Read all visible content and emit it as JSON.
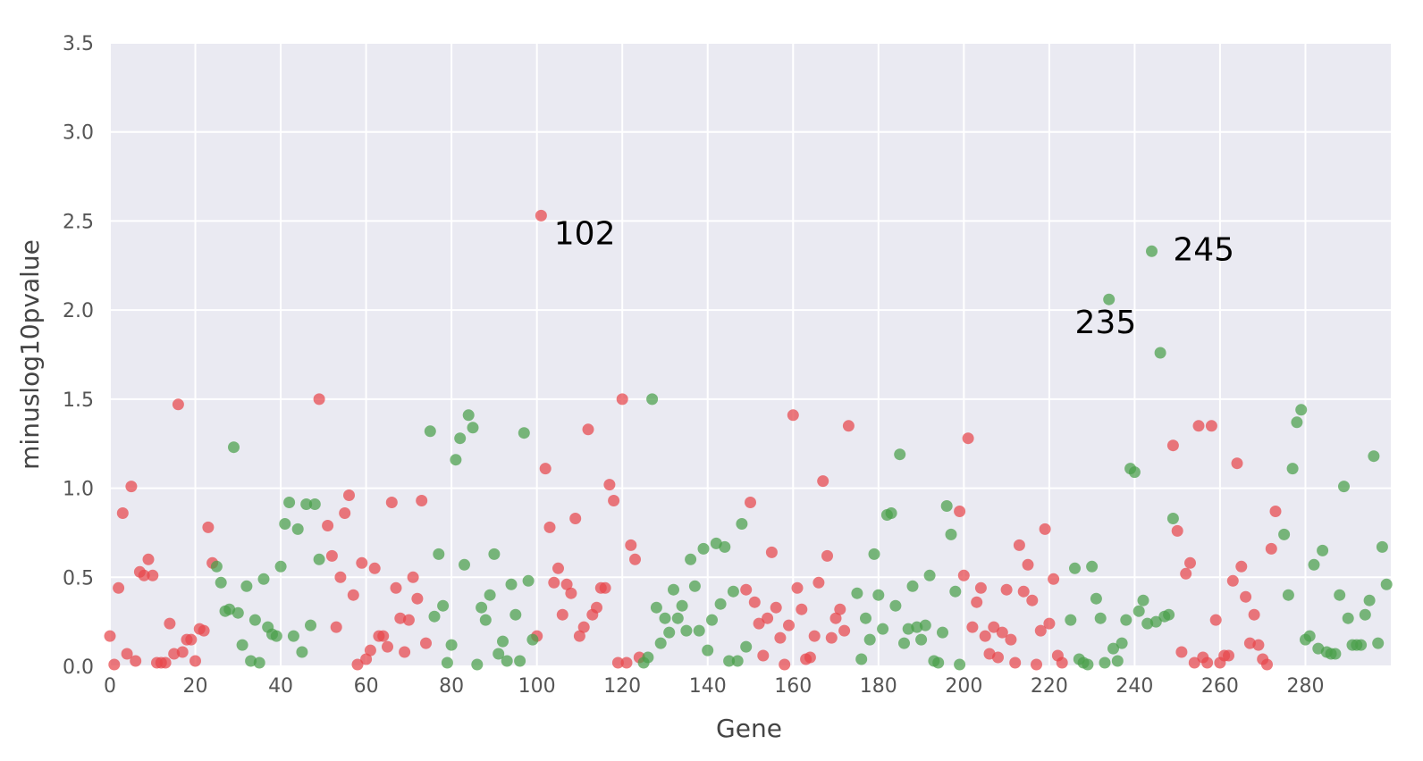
{
  "chart_data": {
    "type": "scatter",
    "title": "",
    "xlabel": "Gene",
    "ylabel": "minuslog10pvalue",
    "xlim": [
      0,
      300
    ],
    "ylim": [
      0,
      3.5
    ],
    "x_ticks": [
      0,
      20,
      40,
      60,
      80,
      100,
      120,
      140,
      160,
      180,
      200,
      220,
      240,
      260,
      280
    ],
    "y_ticks": [
      "0.0",
      "0.5",
      "1.0",
      "1.5",
      "2.0",
      "2.5",
      "3.0",
      "3.5"
    ],
    "grid": true,
    "background_color": "#eaeaf2",
    "colors": {
      "red": "#e8474b",
      "green": "#4aa04a"
    },
    "annotations": [
      {
        "text": "102",
        "x": 104,
        "y": 2.37
      },
      {
        "text": "235",
        "x": 226,
        "y": 1.87
      },
      {
        "text": "245",
        "x": 249,
        "y": 2.28
      }
    ],
    "series": [
      {
        "color": "red",
        "points": [
          [
            0,
            0.17
          ],
          [
            1,
            0.01
          ],
          [
            2,
            0.44
          ],
          [
            3,
            0.86
          ],
          [
            4,
            0.07
          ],
          [
            5,
            1.01
          ],
          [
            6,
            0.03
          ],
          [
            7,
            0.53
          ],
          [
            8,
            0.51
          ],
          [
            9,
            0.6
          ],
          [
            10,
            0.51
          ],
          [
            11,
            0.02
          ],
          [
            12,
            0.02
          ],
          [
            13,
            0.02
          ],
          [
            14,
            0.24
          ],
          [
            15,
            0.07
          ],
          [
            16,
            1.47
          ],
          [
            17,
            0.08
          ],
          [
            18,
            0.15
          ],
          [
            19,
            0.15
          ],
          [
            20,
            0.03
          ],
          [
            21,
            0.21
          ],
          [
            22,
            0.2
          ],
          [
            23,
            0.78
          ],
          [
            24,
            0.58
          ],
          [
            49,
            1.5
          ],
          [
            51,
            0.79
          ],
          [
            52,
            0.62
          ],
          [
            53,
            0.22
          ],
          [
            54,
            0.5
          ],
          [
            55,
            0.86
          ],
          [
            56,
            0.96
          ],
          [
            57,
            0.4
          ],
          [
            58,
            0.01
          ],
          [
            59,
            0.58
          ],
          [
            60,
            0.04
          ],
          [
            61,
            0.09
          ],
          [
            62,
            0.55
          ],
          [
            63,
            0.17
          ],
          [
            64,
            0.17
          ],
          [
            65,
            0.11
          ],
          [
            66,
            0.92
          ],
          [
            67,
            0.44
          ],
          [
            68,
            0.27
          ],
          [
            69,
            0.08
          ],
          [
            70,
            0.26
          ],
          [
            71,
            0.5
          ],
          [
            72,
            0.38
          ],
          [
            73,
            0.93
          ],
          [
            74,
            0.13
          ],
          [
            100,
            0.17
          ],
          [
            101,
            2.53
          ],
          [
            102,
            1.11
          ],
          [
            103,
            0.78
          ],
          [
            104,
            0.47
          ],
          [
            105,
            0.55
          ],
          [
            106,
            0.29
          ],
          [
            107,
            0.46
          ],
          [
            108,
            0.41
          ],
          [
            109,
            0.83
          ],
          [
            110,
            0.17
          ],
          [
            111,
            0.22
          ],
          [
            112,
            1.33
          ],
          [
            113,
            0.29
          ],
          [
            114,
            0.33
          ],
          [
            115,
            0.44
          ],
          [
            116,
            0.44
          ],
          [
            117,
            1.02
          ],
          [
            118,
            0.93
          ],
          [
            119,
            0.02
          ],
          [
            120,
            1.5
          ],
          [
            121,
            0.02
          ],
          [
            122,
            0.68
          ],
          [
            123,
            0.6
          ],
          [
            124,
            0.05
          ],
          [
            149,
            0.43
          ],
          [
            150,
            0.92
          ],
          [
            151,
            0.36
          ],
          [
            152,
            0.24
          ],
          [
            153,
            0.06
          ],
          [
            154,
            0.27
          ],
          [
            155,
            0.64
          ],
          [
            156,
            0.33
          ],
          [
            157,
            0.16
          ],
          [
            158,
            0.01
          ],
          [
            159,
            0.23
          ],
          [
            160,
            1.41
          ],
          [
            161,
            0.44
          ],
          [
            162,
            0.32
          ],
          [
            163,
            0.04
          ],
          [
            164,
            0.05
          ],
          [
            165,
            0.17
          ],
          [
            166,
            0.47
          ],
          [
            167,
            1.04
          ],
          [
            168,
            0.62
          ],
          [
            169,
            0.16
          ],
          [
            170,
            0.27
          ],
          [
            171,
            0.32
          ],
          [
            172,
            0.2
          ],
          [
            173,
            1.35
          ],
          [
            199,
            0.87
          ],
          [
            200,
            0.51
          ],
          [
            201,
            1.28
          ],
          [
            202,
            0.22
          ],
          [
            203,
            0.36
          ],
          [
            204,
            0.44
          ],
          [
            205,
            0.17
          ],
          [
            206,
            0.07
          ],
          [
            207,
            0.22
          ],
          [
            208,
            0.05
          ],
          [
            209,
            0.19
          ],
          [
            210,
            0.43
          ],
          [
            211,
            0.15
          ],
          [
            212,
            0.02
          ],
          [
            213,
            0.68
          ],
          [
            214,
            0.42
          ],
          [
            215,
            0.57
          ],
          [
            216,
            0.37
          ],
          [
            217,
            0.01
          ],
          [
            218,
            0.2
          ],
          [
            219,
            0.77
          ],
          [
            220,
            0.24
          ],
          [
            221,
            0.49
          ],
          [
            222,
            0.06
          ],
          [
            223,
            0.02
          ],
          [
            249,
            1.24
          ],
          [
            250,
            0.76
          ],
          [
            251,
            0.08
          ],
          [
            252,
            0.52
          ],
          [
            253,
            0.58
          ],
          [
            254,
            0.02
          ],
          [
            255,
            1.35
          ],
          [
            256,
            0.05
          ],
          [
            257,
            0.02
          ],
          [
            258,
            1.35
          ],
          [
            259,
            0.26
          ],
          [
            260,
            0.02
          ],
          [
            261,
            0.06
          ],
          [
            262,
            0.06
          ],
          [
            263,
            0.48
          ],
          [
            264,
            1.14
          ],
          [
            265,
            0.56
          ],
          [
            266,
            0.39
          ],
          [
            267,
            0.13
          ],
          [
            268,
            0.29
          ],
          [
            269,
            0.12
          ],
          [
            270,
            0.04
          ],
          [
            271,
            0.01
          ],
          [
            272,
            0.66
          ],
          [
            273,
            0.87
          ]
        ]
      },
      {
        "color": "green",
        "points": [
          [
            25,
            0.56
          ],
          [
            26,
            0.47
          ],
          [
            27,
            0.31
          ],
          [
            28,
            0.32
          ],
          [
            29,
            1.23
          ],
          [
            30,
            0.3
          ],
          [
            31,
            0.12
          ],
          [
            32,
            0.45
          ],
          [
            33,
            0.03
          ],
          [
            34,
            0.26
          ],
          [
            35,
            0.02
          ],
          [
            36,
            0.49
          ],
          [
            37,
            0.22
          ],
          [
            38,
            0.18
          ],
          [
            39,
            0.17
          ],
          [
            40,
            0.56
          ],
          [
            41,
            0.8
          ],
          [
            42,
            0.92
          ],
          [
            43,
            0.17
          ],
          [
            44,
            0.77
          ],
          [
            45,
            0.08
          ],
          [
            46,
            0.91
          ],
          [
            47,
            0.23
          ],
          [
            48,
            0.91
          ],
          [
            49,
            0.6
          ],
          [
            75,
            1.32
          ],
          [
            76,
            0.28
          ],
          [
            77,
            0.63
          ],
          [
            78,
            0.34
          ],
          [
            79,
            0.02
          ],
          [
            80,
            0.12
          ],
          [
            81,
            1.16
          ],
          [
            82,
            1.28
          ],
          [
            83,
            0.57
          ],
          [
            84,
            1.41
          ],
          [
            85,
            1.34
          ],
          [
            86,
            0.01
          ],
          [
            87,
            0.33
          ],
          [
            88,
            0.26
          ],
          [
            89,
            0.4
          ],
          [
            90,
            0.63
          ],
          [
            91,
            0.07
          ],
          [
            92,
            0.14
          ],
          [
            93,
            0.03
          ],
          [
            94,
            0.46
          ],
          [
            95,
            0.29
          ],
          [
            96,
            0.03
          ],
          [
            97,
            1.31
          ],
          [
            98,
            0.48
          ],
          [
            99,
            0.15
          ],
          [
            125,
            0.02
          ],
          [
            126,
            0.05
          ],
          [
            127,
            1.5
          ],
          [
            128,
            0.33
          ],
          [
            129,
            0.13
          ],
          [
            130,
            0.27
          ],
          [
            131,
            0.19
          ],
          [
            132,
            0.43
          ],
          [
            133,
            0.27
          ],
          [
            134,
            0.34
          ],
          [
            135,
            0.2
          ],
          [
            136,
            0.6
          ],
          [
            137,
            0.45
          ],
          [
            138,
            0.2
          ],
          [
            139,
            0.66
          ],
          [
            140,
            0.09
          ],
          [
            141,
            0.26
          ],
          [
            142,
            0.69
          ],
          [
            143,
            0.35
          ],
          [
            144,
            0.67
          ],
          [
            145,
            0.03
          ],
          [
            146,
            0.42
          ],
          [
            147,
            0.03
          ],
          [
            148,
            0.8
          ],
          [
            149,
            0.11
          ],
          [
            175,
            0.41
          ],
          [
            176,
            0.04
          ],
          [
            177,
            0.27
          ],
          [
            178,
            0.15
          ],
          [
            179,
            0.63
          ],
          [
            180,
            0.4
          ],
          [
            181,
            0.21
          ],
          [
            182,
            0.85
          ],
          [
            183,
            0.86
          ],
          [
            184,
            0.34
          ],
          [
            185,
            1.19
          ],
          [
            186,
            0.13
          ],
          [
            187,
            0.21
          ],
          [
            188,
            0.45
          ],
          [
            189,
            0.22
          ],
          [
            190,
            0.15
          ],
          [
            191,
            0.23
          ],
          [
            192,
            0.51
          ],
          [
            193,
            0.03
          ],
          [
            194,
            0.02
          ],
          [
            195,
            0.19
          ],
          [
            196,
            0.9
          ],
          [
            197,
            0.74
          ],
          [
            198,
            0.42
          ],
          [
            199,
            0.01
          ],
          [
            225,
            0.26
          ],
          [
            226,
            0.55
          ],
          [
            227,
            0.04
          ],
          [
            228,
            0.02
          ],
          [
            229,
            0.01
          ],
          [
            230,
            0.56
          ],
          [
            231,
            0.38
          ],
          [
            232,
            0.27
          ],
          [
            233,
            0.02
          ],
          [
            234,
            2.06
          ],
          [
            235,
            0.1
          ],
          [
            236,
            0.03
          ],
          [
            237,
            0.13
          ],
          [
            238,
            0.26
          ],
          [
            239,
            1.11
          ],
          [
            240,
            1.09
          ],
          [
            241,
            0.31
          ],
          [
            242,
            0.37
          ],
          [
            243,
            0.24
          ],
          [
            244,
            2.33
          ],
          [
            245,
            0.25
          ],
          [
            246,
            1.76
          ],
          [
            247,
            0.28
          ],
          [
            248,
            0.29
          ],
          [
            249,
            0.83
          ],
          [
            275,
            0.74
          ],
          [
            276,
            0.4
          ],
          [
            277,
            1.11
          ],
          [
            278,
            1.37
          ],
          [
            279,
            1.44
          ],
          [
            280,
            0.15
          ],
          [
            281,
            0.17
          ],
          [
            282,
            0.57
          ],
          [
            283,
            0.1
          ],
          [
            284,
            0.65
          ],
          [
            285,
            0.08
          ],
          [
            286,
            0.07
          ],
          [
            287,
            0.07
          ],
          [
            288,
            0.4
          ],
          [
            289,
            1.01
          ],
          [
            290,
            0.27
          ],
          [
            291,
            0.12
          ],
          [
            292,
            0.12
          ],
          [
            293,
            0.12
          ],
          [
            294,
            0.29
          ],
          [
            295,
            0.37
          ],
          [
            296,
            1.18
          ],
          [
            297,
            0.13
          ],
          [
            298,
            0.67
          ],
          [
            299,
            0.46
          ]
        ]
      }
    ]
  }
}
